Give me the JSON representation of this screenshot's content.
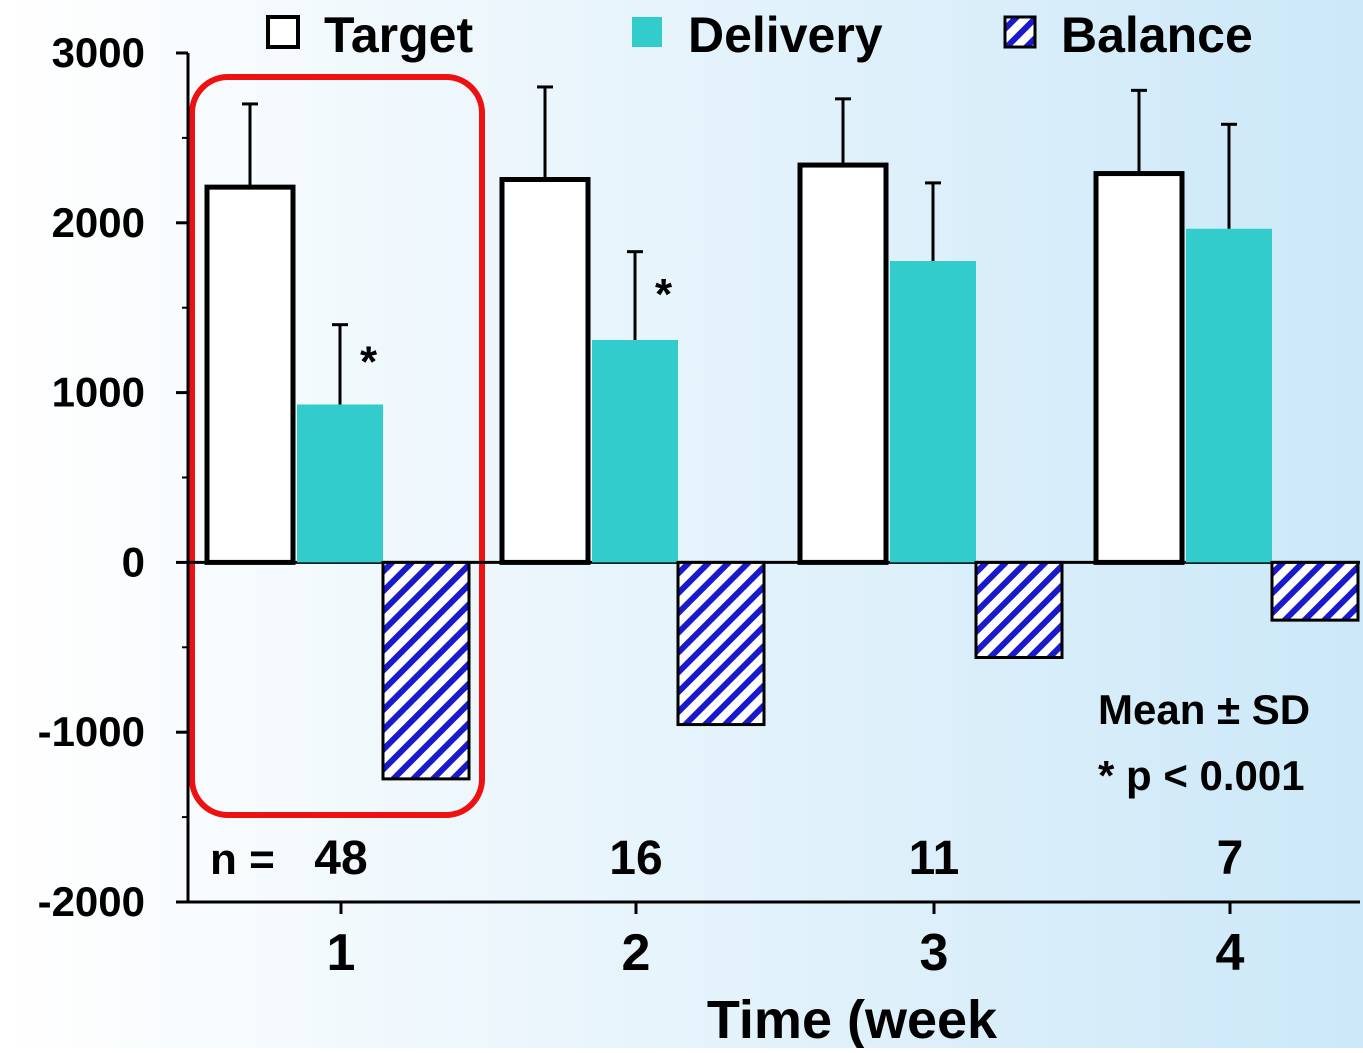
{
  "chart_data": {
    "type": "bar",
    "categories": [
      "1",
      "2",
      "3",
      "4"
    ],
    "series": [
      {
        "name": "Target",
        "values": [
          2210,
          2255,
          2340,
          2290
        ],
        "sd": [
          490,
          545,
          390,
          490
        ],
        "style": "outline"
      },
      {
        "name": "Delivery",
        "values": [
          930,
          1310,
          1775,
          1965
        ],
        "sd": [
          470,
          520,
          460,
          615
        ],
        "style": "solid"
      },
      {
        "name": "Balance",
        "values": [
          -1275,
          -955,
          -560,
          -340
        ],
        "style": "hatched"
      }
    ],
    "significance_markers": [
      {
        "category": "1",
        "series": "Delivery",
        "label": "*"
      },
      {
        "category": "2",
        "series": "Delivery",
        "label": "*"
      }
    ],
    "n_label": "n =",
    "n_values": [
      "48",
      "16",
      "11",
      "7"
    ],
    "xlabel": "Time (week",
    "ylabel": "",
    "ylim": [
      -2000,
      3000
    ],
    "yticks": [
      3000,
      2000,
      1000,
      0,
      -1000,
      -2000
    ],
    "minor_y_step": 500,
    "annotations": [
      "Mean ± SD",
      "* p < 0.001"
    ],
    "highlight_category": "1",
    "legend_position": "top",
    "grid": false
  },
  "colors": {
    "delivery": "#33cccc",
    "hatch": "#1a1acc",
    "highlight": "#ee1111",
    "bg_left": "#ffffff",
    "bg_right": "#cce8f8"
  }
}
